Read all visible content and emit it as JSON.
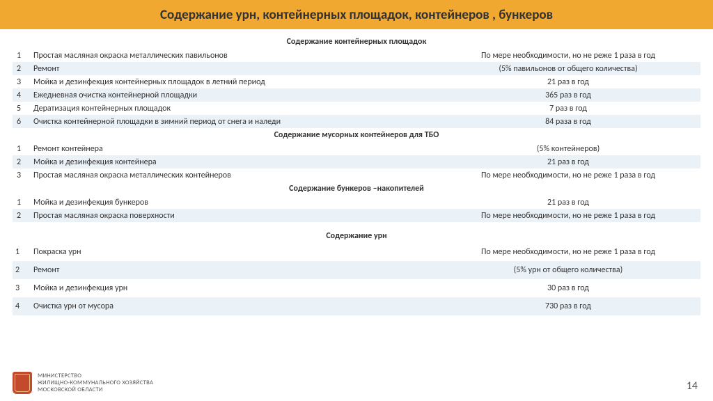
{
  "title": "Содержание урн, контейнерных площадок, контейнеров , бункеров",
  "colors": {
    "accent": "#f0a830",
    "rowAlt": "#eaf1f7",
    "text": "#333333",
    "crest": "#c44a2e"
  },
  "sections": [
    {
      "header": "Содержание контейнерных площадок",
      "rows": [
        {
          "n": "1",
          "desc": "Простая масляная окраска металлических  павильонов",
          "val": "По мере необходимости, но не реже 1 раза в год"
        },
        {
          "n": "2",
          "desc": "Ремонт",
          "val": "(5%  павильонов  от общего количества)"
        },
        {
          "n": "3",
          "desc": "Мойка и дезинфекция  контейнерных площадок в летний период",
          "val": "21 раз в год"
        },
        {
          "n": "4",
          "desc": "Ежедневная очистка контейнерной площадки",
          "val": "365 раз в год"
        },
        {
          "n": "5",
          "desc": "Дератизация контейнерных площадок",
          "val": "7 раз в год"
        },
        {
          "n": "6",
          "desc": "Очистка контейнерной площадки в зимний  период  от снега и наледи",
          "val": "84 раза в год"
        }
      ]
    },
    {
      "header": "Содержание мусорных контейнеров для ТБО",
      "rows": [
        {
          "n": "1",
          "desc": "Ремонт контейнера",
          "val": "(5% контейнеров)"
        },
        {
          "n": "2",
          "desc": "Мойка и дезинфекция контейнера",
          "val": "21 раз  в год"
        },
        {
          "n": "3",
          "desc": "Простая масляная окраска металлических контейнеров",
          "val": "По мере необходимости, но не реже 1 раза в год"
        }
      ]
    },
    {
      "header": "Содержание бункеров –накопителей",
      "rows": [
        {
          "n": "1",
          "desc": "Мойка и дезинфекция  бункеров",
          "val": "21 раз в год"
        },
        {
          "n": "2",
          "desc": "Простая масляная окраска поверхности",
          "val": "По мере необходимости, но не реже 1 раза в год"
        }
      ]
    }
  ],
  "urnsSection": {
    "header": "Содержание урн",
    "rows": [
      {
        "n": "1",
        "desc": "Покраска урн",
        "val": "По мере необходимости, но не реже 1 раза в год"
      },
      {
        "n": "2",
        "desc": "Ремонт",
        "val": "(5% урн от общего количества)"
      },
      {
        "n": "3",
        "desc": "Мойка и дезинфекция урн",
        "val": "30 раз в год"
      },
      {
        "n": "4",
        "desc": "Очистка  урн от мусора",
        "val": "730 раз в год"
      }
    ]
  },
  "footer": {
    "line1": "МИНИСТЕРСТВО",
    "line2": "ЖИЛИЩНО-КОММУНАЛЬНОГО ХОЗЯЙСТВА",
    "line3": "МОСКОВСКОЙ ОБЛАСТИ"
  },
  "pageNumber": "14"
}
